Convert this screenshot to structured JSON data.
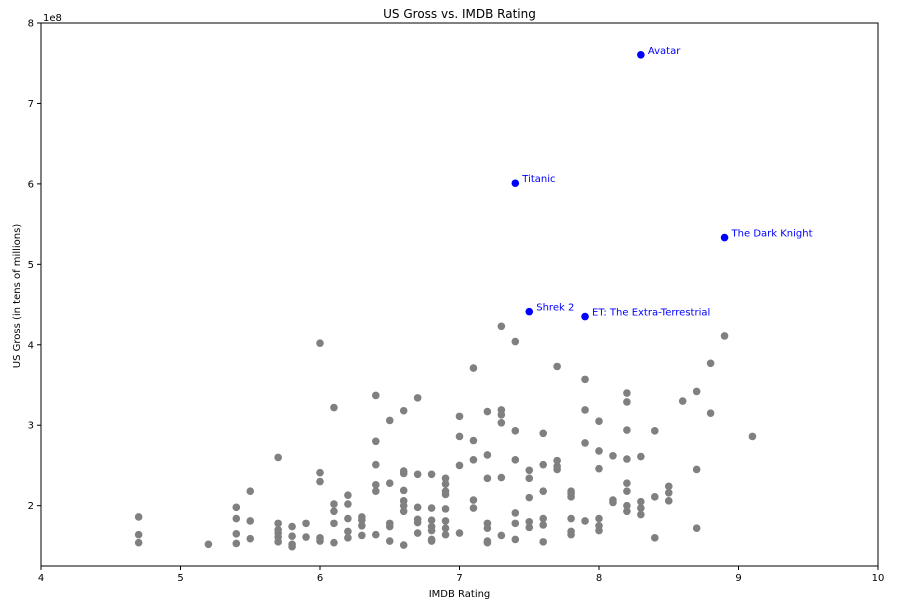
{
  "chart_data": {
    "type": "scatter",
    "title": "US Gross vs. IMDB Rating",
    "xlabel": "IMDB Rating",
    "ylabel": "US Gross (in tens of millions)",
    "offset_label": "1e8",
    "xlim": [
      4,
      10
    ],
    "ylim": [
      125000000,
      800000000
    ],
    "x_ticks": [
      4,
      5,
      6,
      7,
      8,
      9,
      10
    ],
    "y_ticks": [
      200000000,
      300000000,
      400000000,
      500000000,
      600000000,
      700000000,
      800000000
    ],
    "y_tick_labels": [
      "2",
      "3",
      "4",
      "5",
      "6",
      "7",
      "8"
    ],
    "grid": false,
    "colors": {
      "points": "#808080",
      "highlight": "#0000ff"
    },
    "highlighted": [
      {
        "label": "Avatar",
        "x": 8.3,
        "y": 760500000
      },
      {
        "label": "Titanic",
        "x": 7.4,
        "y": 600800000
      },
      {
        "label": "The Dark Knight",
        "x": 8.9,
        "y": 533300000
      },
      {
        "label": "Shrek 2",
        "x": 7.5,
        "y": 441200000
      },
      {
        "label": "ET: The Extra-Terrestrial",
        "x": 7.9,
        "y": 435100000
      }
    ],
    "points": [
      [
        4.7,
        186000000
      ],
      [
        4.7,
        164000000
      ],
      [
        4.7,
        154000000
      ],
      [
        5.2,
        152000000
      ],
      [
        5.4,
        198000000
      ],
      [
        5.4,
        184000000
      ],
      [
        5.4,
        165000000
      ],
      [
        5.4,
        153000000
      ],
      [
        5.5,
        218000000
      ],
      [
        5.5,
        181000000
      ],
      [
        5.5,
        159000000
      ],
      [
        5.7,
        260000000
      ],
      [
        5.7,
        178000000
      ],
      [
        5.7,
        170000000
      ],
      [
        5.7,
        166000000
      ],
      [
        5.7,
        161000000
      ],
      [
        5.7,
        155000000
      ],
      [
        5.8,
        174000000
      ],
      [
        5.8,
        162000000
      ],
      [
        5.8,
        152000000
      ],
      [
        5.8,
        149000000
      ],
      [
        5.9,
        178000000
      ],
      [
        5.9,
        161000000
      ],
      [
        6.0,
        402000000
      ],
      [
        6.0,
        241000000
      ],
      [
        6.0,
        230000000
      ],
      [
        6.0,
        160000000
      ],
      [
        6.0,
        156000000
      ],
      [
        6.1,
        322000000
      ],
      [
        6.1,
        202000000
      ],
      [
        6.1,
        193000000
      ],
      [
        6.1,
        178000000
      ],
      [
        6.1,
        154000000
      ],
      [
        6.2,
        213000000
      ],
      [
        6.2,
        202000000
      ],
      [
        6.2,
        184000000
      ],
      [
        6.2,
        168000000
      ],
      [
        6.2,
        160000000
      ],
      [
        6.3,
        186000000
      ],
      [
        6.3,
        182000000
      ],
      [
        6.3,
        175000000
      ],
      [
        6.3,
        163000000
      ],
      [
        6.4,
        337000000
      ],
      [
        6.4,
        280000000
      ],
      [
        6.4,
        251000000
      ],
      [
        6.4,
        226000000
      ],
      [
        6.4,
        218000000
      ],
      [
        6.4,
        164000000
      ],
      [
        6.5,
        306000000
      ],
      [
        6.5,
        228000000
      ],
      [
        6.5,
        178000000
      ],
      [
        6.5,
        174000000
      ],
      [
        6.5,
        156000000
      ],
      [
        6.6,
        318000000
      ],
      [
        6.6,
        243000000
      ],
      [
        6.6,
        240000000
      ],
      [
        6.6,
        219000000
      ],
      [
        6.6,
        206000000
      ],
      [
        6.6,
        200000000
      ],
      [
        6.6,
        193000000
      ],
      [
        6.6,
        151000000
      ],
      [
        6.7,
        334000000
      ],
      [
        6.7,
        239000000
      ],
      [
        6.7,
        198000000
      ],
      [
        6.7,
        183000000
      ],
      [
        6.7,
        179000000
      ],
      [
        6.7,
        166000000
      ],
      [
        6.8,
        239000000
      ],
      [
        6.8,
        197000000
      ],
      [
        6.8,
        182000000
      ],
      [
        6.8,
        174000000
      ],
      [
        6.8,
        169000000
      ],
      [
        6.8,
        158000000
      ],
      [
        6.8,
        156000000
      ],
      [
        6.9,
        234000000
      ],
      [
        6.9,
        227000000
      ],
      [
        6.9,
        218000000
      ],
      [
        6.9,
        214000000
      ],
      [
        6.9,
        196000000
      ],
      [
        6.9,
        181000000
      ],
      [
        6.9,
        172000000
      ],
      [
        6.9,
        164000000
      ],
      [
        7.0,
        311000000
      ],
      [
        7.0,
        286000000
      ],
      [
        7.0,
        250000000
      ],
      [
        7.0,
        166000000
      ],
      [
        7.1,
        371000000
      ],
      [
        7.1,
        281000000
      ],
      [
        7.1,
        257000000
      ],
      [
        7.1,
        207000000
      ],
      [
        7.1,
        197000000
      ],
      [
        7.2,
        317000000
      ],
      [
        7.2,
        263000000
      ],
      [
        7.2,
        234000000
      ],
      [
        7.2,
        178000000
      ],
      [
        7.2,
        172000000
      ],
      [
        7.2,
        156000000
      ],
      [
        7.2,
        154000000
      ],
      [
        7.3,
        423000000
      ],
      [
        7.3,
        319000000
      ],
      [
        7.3,
        313000000
      ],
      [
        7.3,
        303000000
      ],
      [
        7.3,
        235000000
      ],
      [
        7.3,
        163000000
      ],
      [
        7.4,
        404000000
      ],
      [
        7.4,
        293000000
      ],
      [
        7.4,
        257000000
      ],
      [
        7.4,
        191000000
      ],
      [
        7.4,
        178000000
      ],
      [
        7.4,
        158000000
      ],
      [
        7.5,
        244000000
      ],
      [
        7.5,
        234000000
      ],
      [
        7.5,
        210000000
      ],
      [
        7.5,
        180000000
      ],
      [
        7.5,
        173000000
      ],
      [
        7.6,
        290000000
      ],
      [
        7.6,
        251000000
      ],
      [
        7.6,
        218000000
      ],
      [
        7.6,
        184000000
      ],
      [
        7.6,
        176000000
      ],
      [
        7.6,
        155000000
      ],
      [
        7.7,
        373000000
      ],
      [
        7.7,
        256000000
      ],
      [
        7.7,
        249000000
      ],
      [
        7.7,
        245000000
      ],
      [
        7.8,
        218000000
      ],
      [
        7.8,
        215000000
      ],
      [
        7.8,
        211000000
      ],
      [
        7.8,
        184000000
      ],
      [
        7.8,
        168000000
      ],
      [
        7.8,
        164000000
      ],
      [
        7.9,
        357000000
      ],
      [
        7.9,
        319000000
      ],
      [
        7.9,
        278000000
      ],
      [
        7.9,
        181000000
      ],
      [
        8.0,
        305000000
      ],
      [
        8.0,
        268000000
      ],
      [
        8.0,
        246000000
      ],
      [
        8.0,
        184000000
      ],
      [
        8.0,
        175000000
      ],
      [
        8.0,
        169000000
      ],
      [
        8.1,
        262000000
      ],
      [
        8.1,
        207000000
      ],
      [
        8.1,
        204000000
      ],
      [
        8.2,
        340000000
      ],
      [
        8.2,
        329000000
      ],
      [
        8.2,
        294000000
      ],
      [
        8.2,
        258000000
      ],
      [
        8.2,
        228000000
      ],
      [
        8.2,
        218000000
      ],
      [
        8.2,
        200000000
      ],
      [
        8.2,
        193000000
      ],
      [
        8.3,
        261000000
      ],
      [
        8.3,
        205000000
      ],
      [
        8.3,
        197000000
      ],
      [
        8.3,
        189000000
      ],
      [
        8.4,
        293000000
      ],
      [
        8.4,
        211000000
      ],
      [
        8.4,
        160000000
      ],
      [
        8.5,
        224000000
      ],
      [
        8.5,
        216000000
      ],
      [
        8.5,
        206000000
      ],
      [
        8.6,
        330000000
      ],
      [
        8.7,
        342000000
      ],
      [
        8.7,
        245000000
      ],
      [
        8.7,
        172000000
      ],
      [
        8.8,
        377000000
      ],
      [
        8.8,
        315000000
      ],
      [
        8.9,
        411000000
      ],
      [
        9.1,
        286000000
      ]
    ]
  }
}
